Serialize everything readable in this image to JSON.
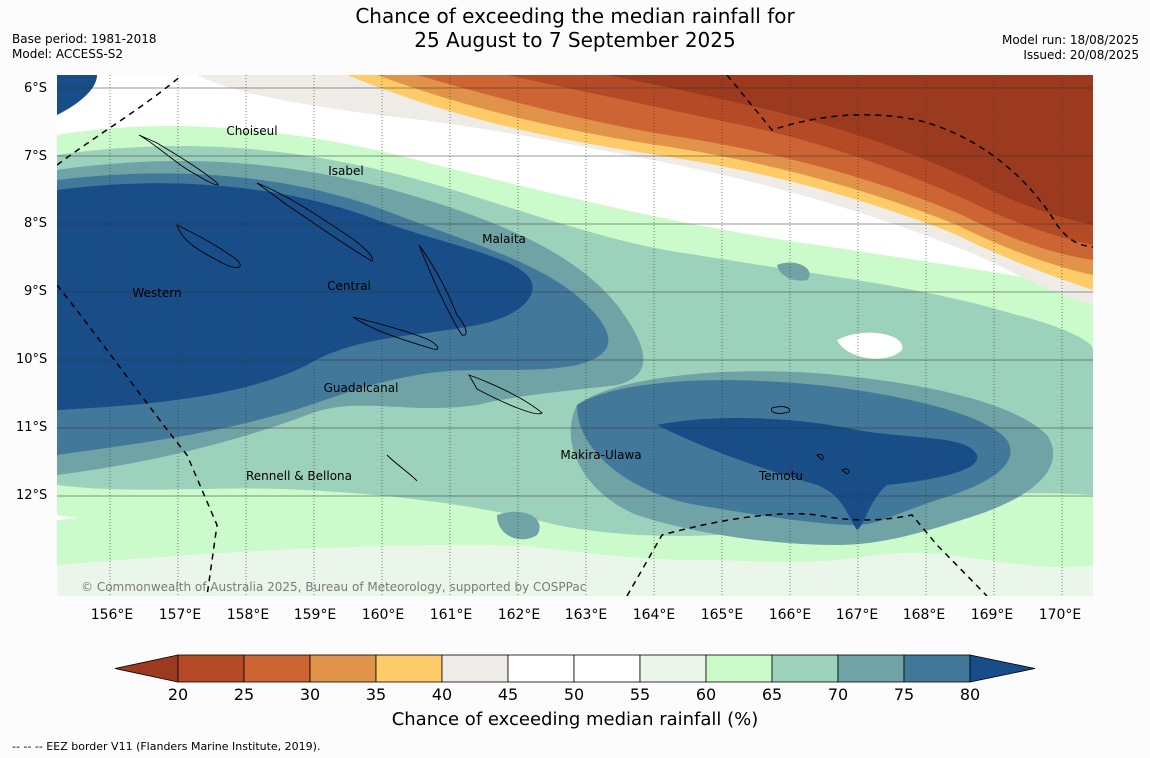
{
  "title": {
    "line1": "Chance of exceeding the median rainfall for",
    "line2": "25 August to 7 September 2025"
  },
  "meta": {
    "base_period": "Base period: 1981-2018",
    "model": "Model: ACCESS-S2",
    "model_run": "Model run: 18/08/2025",
    "issued": "Issued: 20/08/2025"
  },
  "lat_labels": [
    "6°S",
    "7°S",
    "8°S",
    "9°S",
    "10°S",
    "11°S",
    "12°S"
  ],
  "lon_labels": [
    "156°E",
    "157°E",
    "158°E",
    "159°E",
    "160°E",
    "161°E",
    "162°E",
    "163°E",
    "164°E",
    "165°E",
    "166°E",
    "167°E",
    "168°E",
    "169°E",
    "170°E"
  ],
  "places": [
    {
      "name": "Choiseul"
    },
    {
      "name": "Isabel"
    },
    {
      "name": "Malaita"
    },
    {
      "name": "Western"
    },
    {
      "name": "Central"
    },
    {
      "name": "Guadalcanal"
    },
    {
      "name": "Makira-Ulawa"
    },
    {
      "name": "Temotu"
    },
    {
      "name": "Rennell & Bellona"
    }
  ],
  "copyright": "© Commonwealth of Australia 2025, Bureau of Meteorology, supported by COSPPac",
  "colorbar": {
    "ticks": [
      "20",
      "25",
      "30",
      "35",
      "40",
      "45",
      "50",
      "55",
      "60",
      "65",
      "70",
      "75",
      "80"
    ],
    "colors": [
      "#9b3a1e",
      "#b54a26",
      "#cc6533",
      "#e1934a",
      "#fdcc69",
      "#efebe6",
      "#ffffff",
      "#ffffff",
      "#ebf6eb",
      "#cbfacb",
      "#9cd1bb",
      "#6fa3a6",
      "#42789a",
      "#184d88"
    ],
    "title": "Chance of exceeding median rainfall (%)"
  },
  "eez_note": "--  --  -- EEZ border V11 (Flanders Marine Institute, 2019)."
}
